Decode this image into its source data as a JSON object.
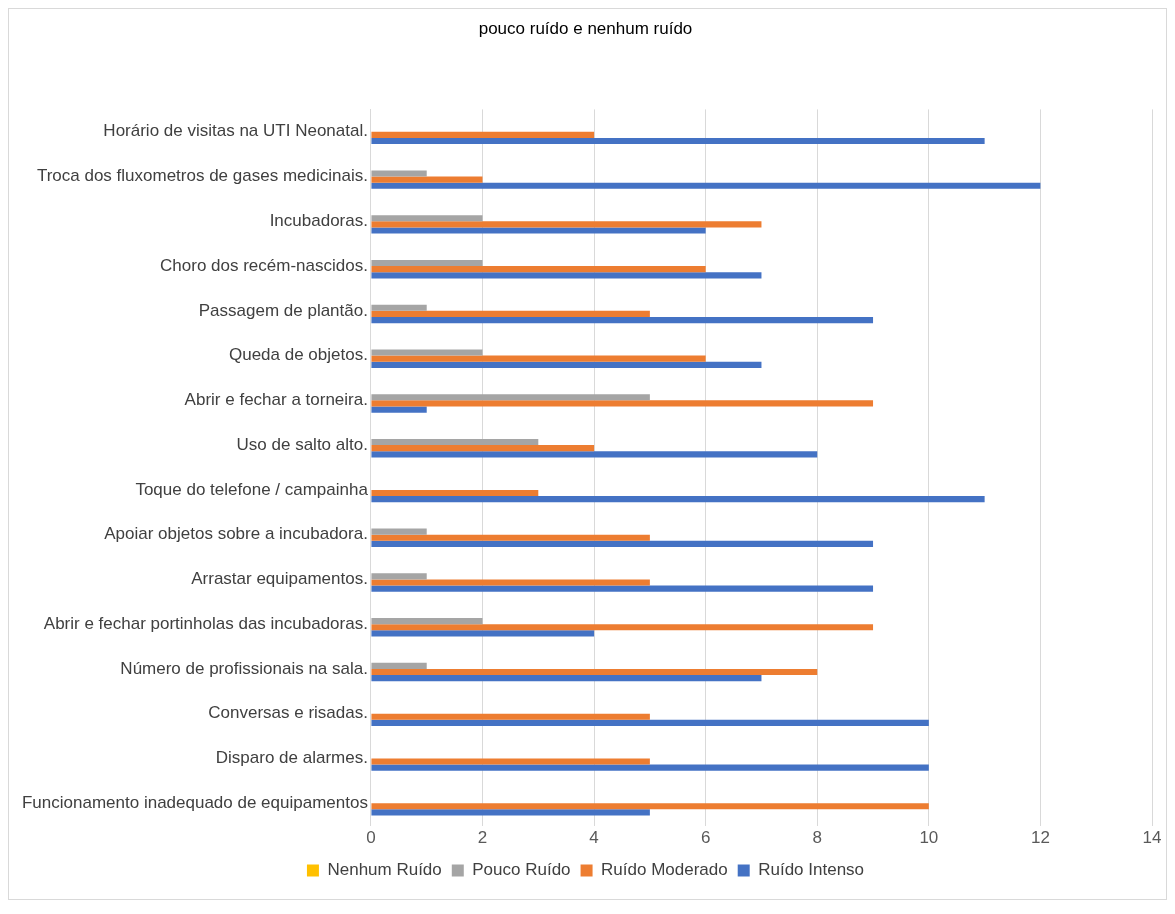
{
  "chart_data": {
    "type": "bar",
    "orientation": "horizontal",
    "title": "pouco ruído e nenhum ruído",
    "categories": [
      "Horário de visitas na UTI Neonatal.",
      "Troca dos fluxometros de gases medicinais.",
      "Incubadoras.",
      "Choro dos recém-nascidos.",
      "Passagem de plantão.",
      "Queda de objetos.",
      "Abrir e fechar a torneira.",
      "Uso de salto alto.",
      "Toque do telefone / campainha",
      "Apoiar objetos sobre a incubadora.",
      "Arrastar equipamentos.",
      "Abrir e fechar portinholas das incubadoras.",
      "Número de profissionais na sala.",
      "Conversas e risadas.",
      "Disparo de alarmes.",
      "Funcionamento inadequado de equipamentos"
    ],
    "series": [
      {
        "name": "Nenhum Ruído",
        "color": "#ffc000",
        "values": [
          0,
          0,
          0,
          0,
          0,
          0,
          0,
          0,
          0,
          0,
          0,
          0,
          0,
          0,
          0,
          0
        ]
      },
      {
        "name": "Pouco Ruído",
        "color": "#a5a5a5",
        "values": [
          0,
          1,
          2,
          2,
          1,
          2,
          5,
          3,
          0,
          1,
          1,
          2,
          1,
          0,
          0,
          0
        ]
      },
      {
        "name": "Ruído Moderado",
        "color": "#ed7d31",
        "values": [
          4,
          2,
          7,
          6,
          5,
          6,
          9,
          4,
          3,
          5,
          5,
          9,
          8,
          5,
          5,
          10
        ]
      },
      {
        "name": "Ruído Intenso",
        "color": "#4472c4",
        "values": [
          11,
          12,
          6,
          7,
          9,
          7,
          1,
          8,
          11,
          9,
          9,
          4,
          7,
          10,
          10,
          5
        ]
      }
    ],
    "xlim": [
      0,
      14
    ],
    "xticks": [
      0,
      2,
      4,
      6,
      8,
      10,
      12,
      14
    ],
    "grid": "x",
    "legend": "bottom"
  }
}
